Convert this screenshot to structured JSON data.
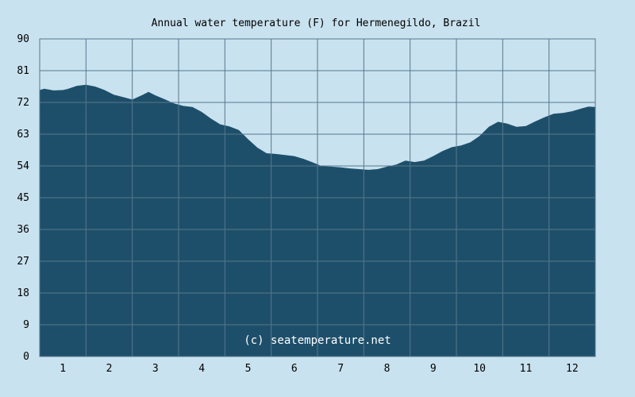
{
  "chart_data": {
    "type": "area",
    "title": "Annual water temperature (F) for Hermenegildo, Brazil",
    "watermark": "(c) seatemperature.net",
    "xlabel": "",
    "ylabel": "",
    "x_ticks": [
      "1",
      "2",
      "3",
      "4",
      "5",
      "6",
      "7",
      "8",
      "9",
      "10",
      "11",
      "12"
    ],
    "y_ticks": [
      "0",
      "9",
      "18",
      "27",
      "36",
      "45",
      "54",
      "63",
      "72",
      "81",
      "90"
    ],
    "ylim": [
      0,
      90
    ],
    "xlim": [
      0.5,
      12.5
    ],
    "grid": true,
    "fill_color": "#1e4f6a",
    "grid_color": "#55788e",
    "background": "#c9e2ef",
    "points": [
      [
        0.5,
        75.5
      ],
      [
        0.6,
        75.9
      ],
      [
        0.8,
        75.4
      ],
      [
        1.0,
        75.5
      ],
      [
        1.1,
        75.8
      ],
      [
        1.3,
        76.7
      ],
      [
        1.5,
        77.0
      ],
      [
        1.7,
        76.5
      ],
      [
        1.9,
        75.5
      ],
      [
        2.1,
        74.2
      ],
      [
        2.3,
        73.5
      ],
      [
        2.5,
        72.8
      ],
      [
        2.7,
        74.0
      ],
      [
        2.85,
        75.0
      ],
      [
        3.0,
        74.0
      ],
      [
        3.2,
        72.9
      ],
      [
        3.4,
        71.7
      ],
      [
        3.6,
        71.0
      ],
      [
        3.8,
        70.7
      ],
      [
        4.0,
        69.3
      ],
      [
        4.2,
        67.4
      ],
      [
        4.4,
        65.8
      ],
      [
        4.6,
        65.2
      ],
      [
        4.8,
        64.2
      ],
      [
        5.0,
        61.6
      ],
      [
        5.2,
        59.2
      ],
      [
        5.4,
        57.6
      ],
      [
        5.6,
        57.4
      ],
      [
        5.8,
        57.1
      ],
      [
        6.0,
        56.8
      ],
      [
        6.2,
        56.0
      ],
      [
        6.4,
        55.0
      ],
      [
        6.6,
        53.9
      ],
      [
        6.8,
        53.8
      ],
      [
        7.0,
        53.6
      ],
      [
        7.2,
        53.3
      ],
      [
        7.4,
        53.1
      ],
      [
        7.6,
        52.9
      ],
      [
        7.8,
        53.1
      ],
      [
        8.0,
        53.8
      ],
      [
        8.2,
        54.4
      ],
      [
        8.4,
        55.5
      ],
      [
        8.6,
        55.1
      ],
      [
        8.8,
        55.5
      ],
      [
        9.0,
        56.8
      ],
      [
        9.2,
        58.2
      ],
      [
        9.4,
        59.3
      ],
      [
        9.6,
        59.8
      ],
      [
        9.8,
        60.7
      ],
      [
        10.0,
        62.5
      ],
      [
        10.2,
        65.1
      ],
      [
        10.4,
        66.5
      ],
      [
        10.6,
        66.0
      ],
      [
        10.8,
        65.1
      ],
      [
        11.0,
        65.3
      ],
      [
        11.2,
        66.6
      ],
      [
        11.4,
        67.8
      ],
      [
        11.6,
        68.8
      ],
      [
        11.8,
        69.0
      ],
      [
        12.0,
        69.5
      ],
      [
        12.2,
        70.3
      ],
      [
        12.35,
        70.8
      ],
      [
        12.5,
        70.7
      ]
    ]
  }
}
